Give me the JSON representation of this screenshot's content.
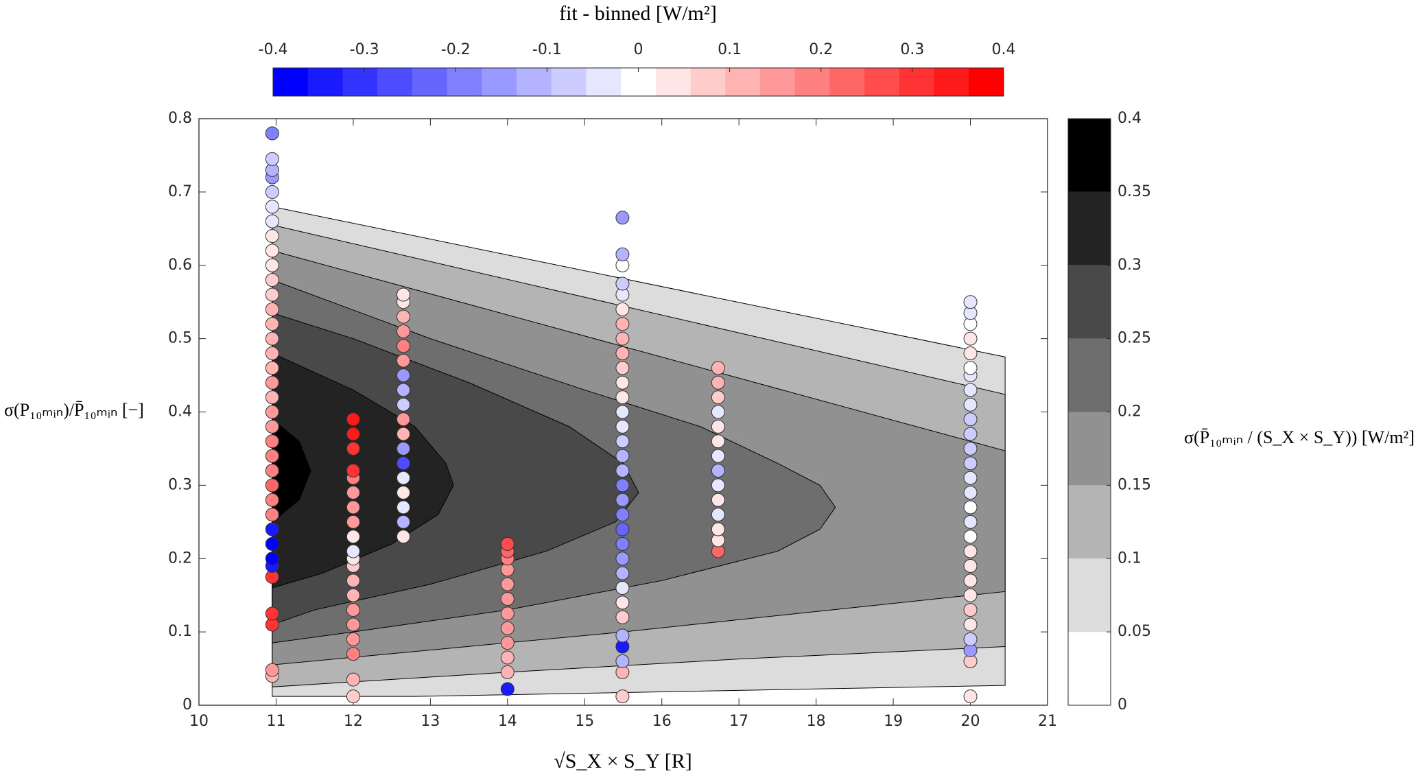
{
  "chart_data": {
    "type": "contour-scatter",
    "title": "fit - binned [W/m²]",
    "x_label": "√S_X × S_Y [R]",
    "y_label": "σ(P₁₀ₘᵢₙ)/P̄₁₀ₘᵢₙ [−]",
    "colorbar_label": "σ(P̄₁₀ₘᵢₙ / (S_X × S_Y)) [W/m²]",
    "xlim": [
      10,
      21
    ],
    "xticks": [
      10,
      11,
      12,
      13,
      14,
      15,
      16,
      17,
      18,
      19,
      20,
      21
    ],
    "ylim": [
      0,
      0.8
    ],
    "yticks": [
      0,
      0.1,
      0.2,
      0.3,
      0.4,
      0.5,
      0.6,
      0.7,
      0.8
    ],
    "point_clim": [
      -0.4,
      0.4
    ],
    "point_cticks": [
      -0.4,
      -0.3,
      -0.2,
      -0.1,
      0,
      0.1,
      0.2,
      0.3,
      0.4
    ],
    "point_colormap": [
      "#0000ff",
      "#1a1aff",
      "#3333ff",
      "#4d4dff",
      "#6666ff",
      "#8080ff",
      "#9999ff",
      "#b3b3ff",
      "#ccccff",
      "#e6e6ff",
      "#ffffff",
      "#ffe6e6",
      "#ffcccc",
      "#ffb3b3",
      "#ff9999",
      "#ff8080",
      "#ff6666",
      "#ff4d4d",
      "#ff3333",
      "#ff1a1a",
      "#ff0000"
    ],
    "contour_clim": [
      0,
      0.4
    ],
    "contour_cticks": [
      0,
      0.05,
      0.1,
      0.15,
      0.2,
      0.25,
      0.3,
      0.35,
      0.4
    ],
    "contours": [
      {
        "level": 0.05,
        "color": "#dcdcdc",
        "x": [
          10.95,
          20.45,
          20.45,
          12.8,
          10.95
        ],
        "y": [
          0.68,
          0.475,
          0.027,
          0.012,
          0.012
        ]
      },
      {
        "level": 0.1,
        "color": "#b4b4b4",
        "x": [
          10.95,
          20.45,
          20.45,
          17,
          14,
          10.95
        ],
        "y": [
          0.655,
          0.424,
          0.08,
          0.063,
          0.045,
          0.025
        ]
      },
      {
        "level": 0.15,
        "color": "#919191",
        "x": [
          10.95,
          20.45,
          20.45,
          15.5,
          10.95
        ],
        "y": [
          0.62,
          0.347,
          0.155,
          0.1,
          0.055
        ]
      },
      {
        "level": 0.2,
        "color": "#6e6e6e",
        "x": [
          10.95,
          13,
          15,
          16.5,
          17.5,
          18.05,
          18.25,
          18.05,
          17.5,
          16,
          14,
          12,
          10.95
        ],
        "y": [
          0.58,
          0.5,
          0.43,
          0.38,
          0.33,
          0.3,
          0.27,
          0.24,
          0.21,
          0.17,
          0.13,
          0.1,
          0.085
        ]
      },
      {
        "level": 0.25,
        "color": "#494949",
        "x": [
          10.95,
          12,
          13.5,
          14.8,
          15.5,
          15.7,
          15.4,
          14.5,
          13,
          11.5,
          10.95
        ],
        "y": [
          0.535,
          0.5,
          0.44,
          0.38,
          0.33,
          0.29,
          0.25,
          0.21,
          0.165,
          0.13,
          0.11
        ]
      },
      {
        "level": 0.3,
        "color": "#232323",
        "x": [
          10.95,
          12,
          12.8,
          13.2,
          13.3,
          13.1,
          12.5,
          11.6,
          10.95
        ],
        "y": [
          0.48,
          0.43,
          0.38,
          0.33,
          0.3,
          0.26,
          0.22,
          0.18,
          0.16
        ]
      },
      {
        "level": 0.35,
        "color": "#000000",
        "x": [
          10.95,
          11.3,
          11.45,
          11.3,
          10.95
        ],
        "y": [
          0.39,
          0.36,
          0.32,
          0.28,
          0.25
        ]
      }
    ],
    "columns": [
      {
        "x": 10.95,
        "y": [
          0.04,
          0.048,
          0.11,
          0.125,
          0.175,
          0.19,
          0.2,
          0.22,
          0.24,
          0.26,
          0.28,
          0.3,
          0.32,
          0.34,
          0.36,
          0.38,
          0.4,
          0.42,
          0.44,
          0.46,
          0.48,
          0.5,
          0.52,
          0.54,
          0.56,
          0.58,
          0.6,
          0.62,
          0.64,
          0.66,
          0.68,
          0.7,
          0.72,
          0.73,
          0.745,
          0.78
        ],
        "values": [
          0.12,
          0.15,
          0.3,
          0.32,
          0.32,
          -0.35,
          -0.38,
          -0.38,
          -0.35,
          0.2,
          0.2,
          0.22,
          0.2,
          0.18,
          0.2,
          0.15,
          0.15,
          0.12,
          0.15,
          0.12,
          0.12,
          0.12,
          0.1,
          0.1,
          0.08,
          0.08,
          0.05,
          0.04,
          0.02,
          -0.02,
          -0.03,
          -0.08,
          -0.15,
          -0.12,
          -0.08,
          -0.18
        ]
      },
      {
        "x": 12,
        "y": [
          0.012,
          0.035,
          0.07,
          0.09,
          0.11,
          0.13,
          0.15,
          0.17,
          0.19,
          0.2,
          0.21,
          0.23,
          0.25,
          0.27,
          0.29,
          0.31,
          0.32,
          0.35,
          0.37,
          0.39
        ],
        "values": [
          0.08,
          0.12,
          0.18,
          0.15,
          0.15,
          0.15,
          0.12,
          0.12,
          0.06,
          0.02,
          -0.03,
          0.03,
          0.15,
          0.15,
          0.15,
          0.18,
          0.3,
          0.32,
          0.33,
          0.33
        ]
      },
      {
        "x": 12.65,
        "y": [
          0.23,
          0.25,
          0.27,
          0.29,
          0.31,
          0.33,
          0.35,
          0.37,
          0.39,
          0.41,
          0.43,
          0.45,
          0.47,
          0.49,
          0.51,
          0.53,
          0.55,
          0.56
        ],
        "values": [
          0.02,
          -0.1,
          -0.05,
          0.02,
          -0.05,
          -0.25,
          -0.15,
          0.1,
          0.15,
          -0.08,
          -0.1,
          -0.15,
          0.15,
          0.18,
          0.15,
          0.12,
          0.05,
          0.02
        ]
      },
      {
        "x": 14,
        "y": [
          0.022,
          0.045,
          0.065,
          0.085,
          0.105,
          0.125,
          0.145,
          0.165,
          0.185,
          0.2,
          0.21,
          0.22
        ],
        "values": [
          -0.35,
          0.12,
          0.12,
          0.14,
          0.15,
          0.14,
          0.15,
          0.15,
          0.16,
          0.18,
          0.22,
          0.28
        ]
      },
      {
        "x": 15.49,
        "y": [
          0.012,
          0.045,
          0.06,
          0.08,
          0.095,
          0.12,
          0.14,
          0.16,
          0.18,
          0.2,
          0.22,
          0.24,
          0.26,
          0.28,
          0.3,
          0.32,
          0.34,
          0.36,
          0.38,
          0.4,
          0.42,
          0.44,
          0.46,
          0.48,
          0.5,
          0.52,
          0.54,
          0.56,
          0.575,
          0.6,
          0.615,
          0.665
        ],
        "values": [
          0.08,
          0.12,
          -0.12,
          -0.35,
          -0.1,
          0.08,
          0.03,
          -0.05,
          -0.1,
          -0.15,
          -0.2,
          -0.22,
          -0.18,
          -0.15,
          -0.2,
          -0.12,
          -0.1,
          -0.08,
          -0.05,
          -0.03,
          0.02,
          0.05,
          0.08,
          0.1,
          0.12,
          0.1,
          0.05,
          -0.05,
          -0.08,
          0,
          -0.1,
          -0.15
        ]
      },
      {
        "x": 16.73,
        "y": [
          0.21,
          0.225,
          0.24,
          0.26,
          0.28,
          0.3,
          0.32,
          0.34,
          0.36,
          0.38,
          0.4,
          0.42,
          0.44,
          0.46
        ],
        "values": [
          0.22,
          0.03,
          0.05,
          -0.05,
          0.02,
          -0.05,
          -0.12,
          -0.05,
          0.05,
          0.02,
          -0.03,
          0.08,
          0.1,
          0.12
        ]
      },
      {
        "x": 20,
        "y": [
          0.012,
          0.06,
          0.075,
          0.09,
          0.11,
          0.13,
          0.15,
          0.17,
          0.19,
          0.21,
          0.23,
          0.25,
          0.27,
          0.29,
          0.31,
          0.33,
          0.35,
          0.37,
          0.39,
          0.41,
          0.43,
          0.45,
          0.46,
          0.48,
          0.5,
          0.52,
          0.535,
          0.55
        ],
        "values": [
          0.05,
          0.08,
          -0.15,
          -0.08,
          0.05,
          0.06,
          0.03,
          0.02,
          0.04,
          0.03,
          0,
          -0.02,
          0,
          -0.05,
          -0.05,
          -0.08,
          -0.06,
          -0.08,
          -0.06,
          -0.04,
          -0.02,
          -0.02,
          0,
          0.04,
          0.03,
          0,
          -0.02,
          -0.04
        ]
      }
    ]
  }
}
